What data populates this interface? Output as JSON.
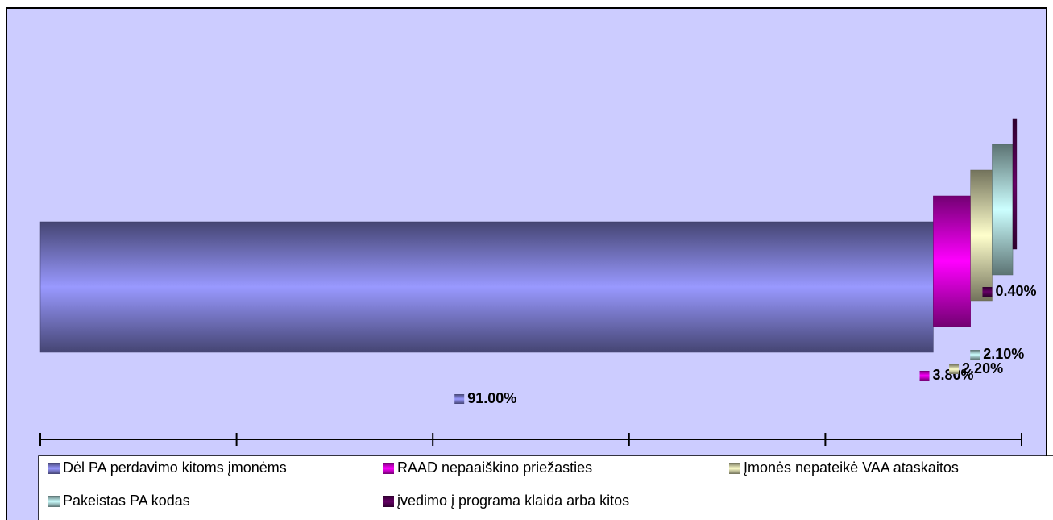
{
  "chart_data": {
    "type": "stacked-bar",
    "series": [
      {
        "name": "Dėl PA perdavimo kitoms įmonėms",
        "color": "#9999FF",
        "values": [
          91.0
        ],
        "value_labels": [
          "91.00%"
        ]
      },
      {
        "name": "RAAD nepaaiškino priežasties",
        "color": "#FF00FF",
        "values": [
          3.8
        ],
        "value_labels": [
          "3.80%"
        ]
      },
      {
        "name": "Įmonės nepateikė  VAA ataskaitos",
        "color": "#FFFFCC",
        "values": [
          2.2
        ],
        "value_labels": [
          "2.20%"
        ]
      },
      {
        "name": "Pakeistas PA kodas",
        "color": "#CCFFFF",
        "values": [
          2.1
        ],
        "value_labels": [
          "2.10%"
        ]
      },
      {
        "name": "įvedimo į programa klaida arba kitos",
        "color": "#660066",
        "values": [
          0.4
        ],
        "value_labels": [
          "0.40%"
        ]
      }
    ],
    "xlim": [
      0,
      100
    ],
    "xticks": [
      0,
      20,
      40,
      60,
      80,
      100
    ]
  }
}
